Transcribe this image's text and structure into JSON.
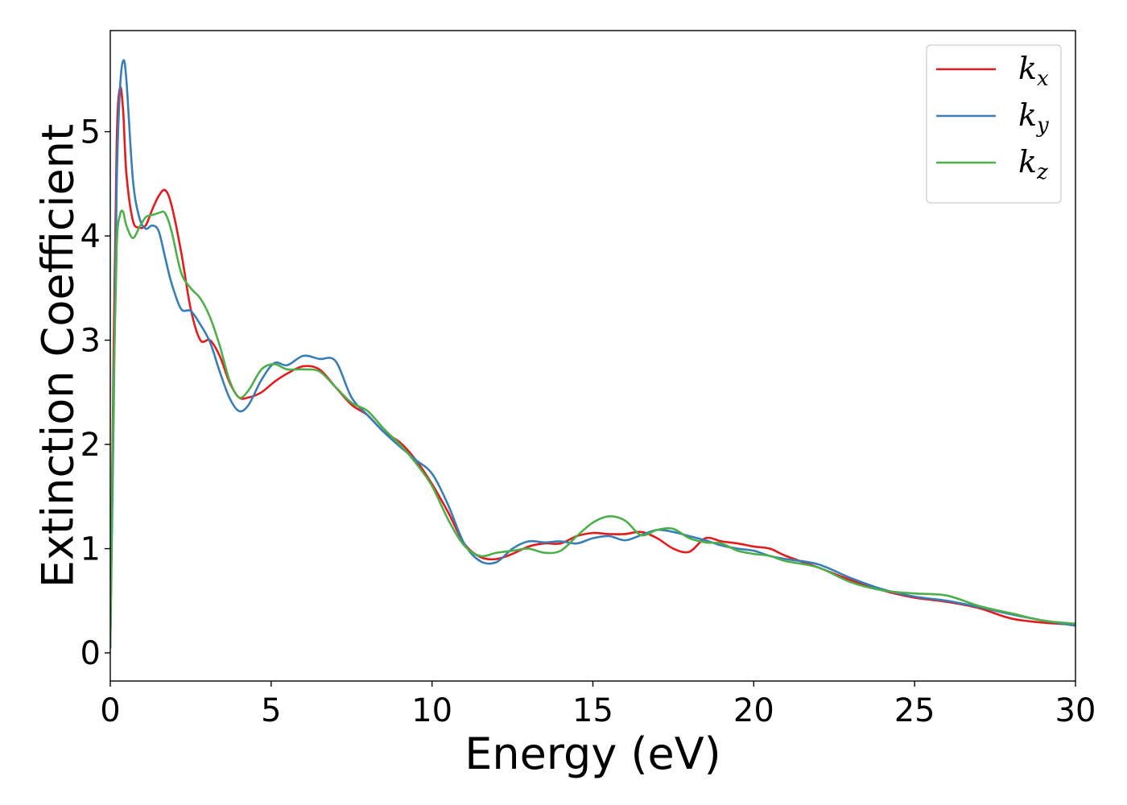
{
  "chart_data": {
    "type": "line",
    "title": "",
    "xlabel": "Energy (eV)",
    "ylabel": "Extinction Coefficient",
    "xlim": [
      0,
      30
    ],
    "ylim": [
      -0.27,
      5.97
    ],
    "xticks": [
      0,
      5,
      10,
      15,
      20,
      25,
      30
    ],
    "yticks": [
      0,
      1,
      2,
      3,
      4,
      5
    ],
    "grid": false,
    "legend_position": "top-right",
    "series": [
      {
        "name": "k",
        "subscript": "x",
        "color": "#e41a1c",
        "x": [
          0,
          0.1,
          0.2,
          0.3,
          0.4,
          0.5,
          0.7,
          0.9,
          1.1,
          1.3,
          1.5,
          1.7,
          1.9,
          2.2,
          2.5,
          2.8,
          3.1,
          3.4,
          3.7,
          4.0,
          4.3,
          4.7,
          5.1,
          5.5,
          6.0,
          6.5,
          7.0,
          7.5,
          8.0,
          8.5,
          9.0,
          9.5,
          10.0,
          10.5,
          11.0,
          11.5,
          12.0,
          12.5,
          13.0,
          13.5,
          14.0,
          14.5,
          15.0,
          15.5,
          16.0,
          16.5,
          17.0,
          17.5,
          18.0,
          18.5,
          19.0,
          19.5,
          20.0,
          20.5,
          21.0,
          22.0,
          23.0,
          24.0,
          25.0,
          26.0,
          27.0,
          28.0,
          29.0,
          30.0
        ],
        "y": [
          0.05,
          2.8,
          4.9,
          5.42,
          5.2,
          4.6,
          4.15,
          4.08,
          4.1,
          4.25,
          4.38,
          4.44,
          4.3,
          3.85,
          3.3,
          3.0,
          3.0,
          2.85,
          2.6,
          2.45,
          2.45,
          2.5,
          2.6,
          2.68,
          2.75,
          2.72,
          2.55,
          2.38,
          2.28,
          2.12,
          2.02,
          1.85,
          1.62,
          1.35,
          1.05,
          0.92,
          0.9,
          0.95,
          1.02,
          1.05,
          1.05,
          1.12,
          1.15,
          1.14,
          1.14,
          1.16,
          1.1,
          1.0,
          0.97,
          1.1,
          1.07,
          1.05,
          1.02,
          1.0,
          0.93,
          0.82,
          0.7,
          0.6,
          0.53,
          0.49,
          0.43,
          0.33,
          0.29,
          0.27
        ]
      },
      {
        "name": "k",
        "subscript": "y",
        "color": "#377eb8",
        "x": [
          0,
          0.1,
          0.2,
          0.3,
          0.4,
          0.5,
          0.7,
          0.9,
          1.1,
          1.3,
          1.5,
          1.7,
          1.9,
          2.2,
          2.5,
          2.8,
          3.1,
          3.4,
          3.7,
          4.0,
          4.3,
          4.7,
          5.1,
          5.5,
          6.0,
          6.5,
          7.0,
          7.5,
          8.0,
          8.5,
          9.0,
          9.5,
          10.0,
          10.5,
          11.0,
          11.5,
          12.0,
          12.5,
          13.0,
          13.5,
          14.0,
          14.5,
          15.0,
          15.5,
          16.0,
          16.5,
          17.0,
          17.5,
          18.0,
          18.5,
          19.0,
          19.5,
          20.0,
          20.5,
          21.0,
          22.0,
          23.0,
          24.0,
          25.0,
          26.0,
          27.0,
          28.0,
          29.0,
          30.0
        ],
        "y": [
          0.05,
          2.2,
          4.5,
          5.4,
          5.68,
          5.5,
          4.55,
          4.18,
          4.07,
          4.1,
          4.05,
          3.8,
          3.55,
          3.3,
          3.28,
          3.15,
          2.98,
          2.7,
          2.45,
          2.32,
          2.38,
          2.62,
          2.78,
          2.76,
          2.85,
          2.82,
          2.8,
          2.45,
          2.28,
          2.12,
          1.98,
          1.85,
          1.72,
          1.42,
          1.05,
          0.88,
          0.87,
          1.0,
          1.07,
          1.06,
          1.07,
          1.05,
          1.1,
          1.12,
          1.08,
          1.13,
          1.18,
          1.16,
          1.12,
          1.08,
          1.03,
          1.0,
          0.98,
          0.93,
          0.9,
          0.85,
          0.72,
          0.61,
          0.54,
          0.5,
          0.44,
          0.37,
          0.31,
          0.26
        ]
      },
      {
        "name": "k",
        "subscript": "z",
        "color": "#4daf4a",
        "x": [
          0,
          0.1,
          0.2,
          0.3,
          0.4,
          0.5,
          0.7,
          0.9,
          1.1,
          1.3,
          1.5,
          1.7,
          1.9,
          2.2,
          2.5,
          2.8,
          3.1,
          3.4,
          3.7,
          4.0,
          4.3,
          4.7,
          5.1,
          5.5,
          6.0,
          6.5,
          7.0,
          7.5,
          8.0,
          8.5,
          9.0,
          9.5,
          10.0,
          10.5,
          11.0,
          11.5,
          12.0,
          12.5,
          13.0,
          13.5,
          14.0,
          14.5,
          15.0,
          15.5,
          16.0,
          16.5,
          17.0,
          17.5,
          18.0,
          18.5,
          19.0,
          19.5,
          20.0,
          20.5,
          21.0,
          22.0,
          23.0,
          24.0,
          25.0,
          26.0,
          27.0,
          28.0,
          29.0,
          30.0
        ],
        "y": [
          0.05,
          2.5,
          3.9,
          4.2,
          4.23,
          4.1,
          3.98,
          4.08,
          4.18,
          4.2,
          4.22,
          4.22,
          4.05,
          3.65,
          3.5,
          3.4,
          3.22,
          2.95,
          2.62,
          2.45,
          2.52,
          2.72,
          2.77,
          2.72,
          2.72,
          2.7,
          2.55,
          2.4,
          2.32,
          2.15,
          2.0,
          1.82,
          1.6,
          1.28,
          1.03,
          0.93,
          0.96,
          0.98,
          1.0,
          0.96,
          0.98,
          1.12,
          1.25,
          1.31,
          1.27,
          1.13,
          1.18,
          1.19,
          1.1,
          1.06,
          1.05,
          0.98,
          0.95,
          0.93,
          0.88,
          0.82,
          0.68,
          0.6,
          0.57,
          0.55,
          0.45,
          0.38,
          0.31,
          0.28
        ]
      }
    ]
  }
}
